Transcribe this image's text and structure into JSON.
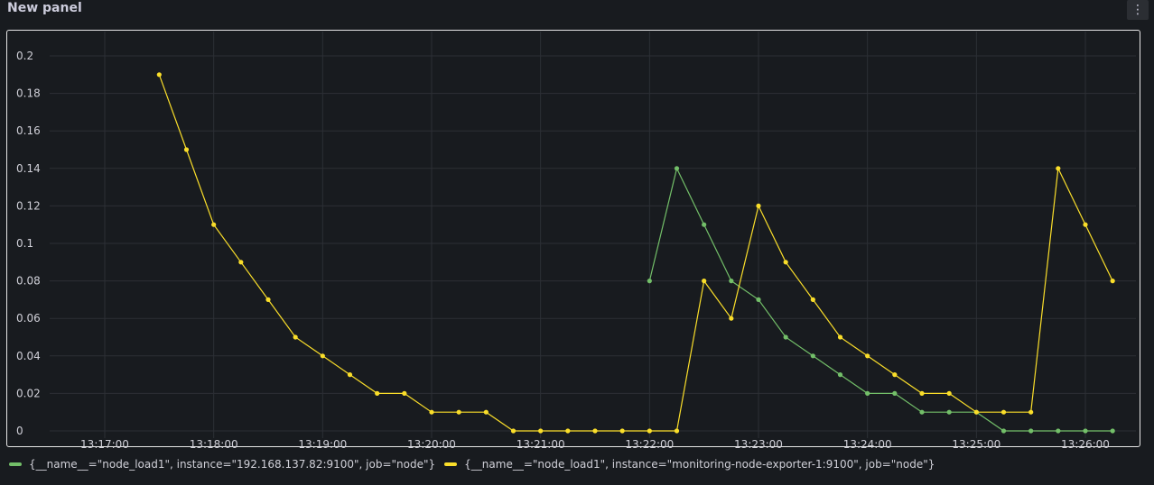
{
  "panel": {
    "title": "New panel",
    "menu_icon": "⋮"
  },
  "colors": {
    "green": "#73bf69",
    "yellow": "#fade2a",
    "grid": "#2c2f35"
  },
  "chart_data": {
    "type": "line",
    "title": "",
    "xlabel": "",
    "ylabel": "",
    "ylim": [
      0,
      0.2
    ],
    "yticks": [
      0,
      0.02,
      0.04,
      0.06,
      0.08,
      0.1,
      0.12,
      0.14,
      0.16,
      0.18,
      0.2
    ],
    "ytick_labels": [
      "0",
      "0.02",
      "0.04",
      "0.06",
      "0.08",
      "0.1",
      "0.12",
      "0.14",
      "0.16",
      "0.18",
      "0.2"
    ],
    "xlim": [
      "13:16:40",
      "13:26:30"
    ],
    "xticks": [
      "13:17:00",
      "13:18:00",
      "13:19:00",
      "13:20:00",
      "13:21:00",
      "13:22:00",
      "13:23:00",
      "13:24:00",
      "13:25:00",
      "13:26:00"
    ],
    "grid": true,
    "legend_position": "bottom-left",
    "series": [
      {
        "name": "{__name__=\"node_load1\", instance=\"192.168.137.82:9100\", job=\"node\"}",
        "color": "#73bf69",
        "x": [
          "13:22:00",
          "13:22:15",
          "13:22:30",
          "13:22:45",
          "13:23:00",
          "13:23:15",
          "13:23:30",
          "13:23:45",
          "13:24:00",
          "13:24:15",
          "13:24:30",
          "13:24:45",
          "13:25:00",
          "13:25:15",
          "13:25:30",
          "13:25:45",
          "13:26:00",
          "13:26:15"
        ],
        "values": [
          0.08,
          0.14,
          0.11,
          0.08,
          0.07,
          0.05,
          0.04,
          0.03,
          0.02,
          0.02,
          0.01,
          0.01,
          0.01,
          0,
          0,
          0,
          0,
          0
        ]
      },
      {
        "name": "{__name__=\"node_load1\", instance=\"monitoring-node-exporter-1:9100\", job=\"node\"}",
        "color": "#fade2a",
        "x": [
          "13:17:30",
          "13:17:45",
          "13:18:00",
          "13:18:15",
          "13:18:30",
          "13:18:45",
          "13:19:00",
          "13:19:15",
          "13:19:30",
          "13:19:45",
          "13:20:00",
          "13:20:15",
          "13:20:30",
          "13:20:45",
          "13:21:00",
          "13:21:15",
          "13:21:30",
          "13:21:45",
          "13:22:00",
          "13:22:15",
          "13:22:30",
          "13:22:45",
          "13:23:00",
          "13:23:15",
          "13:23:30",
          "13:23:45",
          "13:24:00",
          "13:24:15",
          "13:24:30",
          "13:24:45",
          "13:25:00",
          "13:25:15",
          "13:25:30",
          "13:25:45",
          "13:26:00",
          "13:26:15"
        ],
        "values": [
          0.19,
          0.15,
          0.11,
          0.09,
          0.07,
          0.05,
          0.04,
          0.03,
          0.02,
          0.02,
          0.01,
          0.01,
          0.01,
          0,
          0,
          0,
          0,
          0,
          0,
          0,
          0.08,
          0.06,
          0.12,
          0.09,
          0.07,
          0.05,
          0.04,
          0.03,
          0.02,
          0.02,
          0.01,
          0.01,
          0.01,
          0.14,
          0.11,
          0.08
        ]
      }
    ]
  }
}
